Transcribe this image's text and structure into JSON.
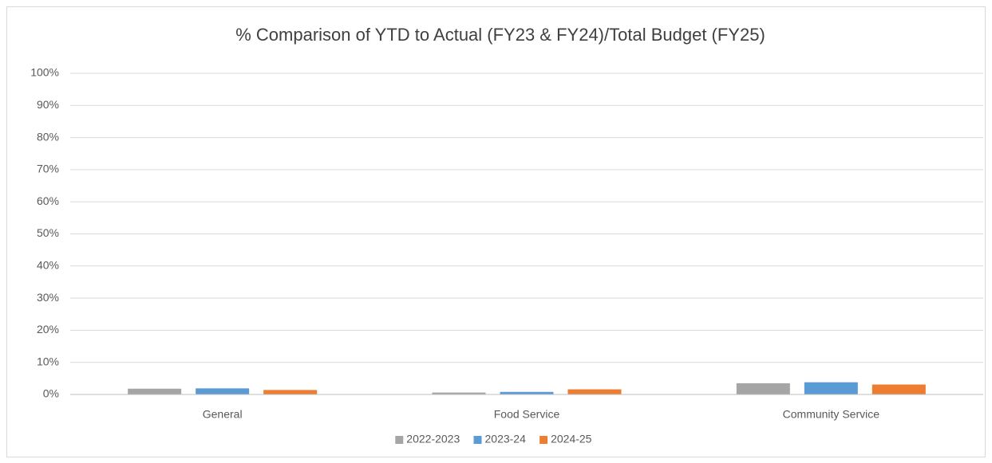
{
  "chart_data": {
    "type": "bar",
    "title": "% Comparison of YTD to Actual (FY23 & FY24)/Total Budget (FY25)",
    "categories": [
      "General",
      "Food Service",
      "Community Service"
    ],
    "series": [
      {
        "name": "2022-2023",
        "color": "#a5a5a5",
        "values": [
          1.8,
          0.6,
          3.5
        ]
      },
      {
        "name": "2023-24",
        "color": "#5b9bd5",
        "values": [
          1.9,
          0.8,
          3.8
        ]
      },
      {
        "name": "2024-25",
        "color": "#ed7d31",
        "values": [
          1.4,
          1.6,
          3.1
        ]
      }
    ],
    "ylim": [
      0,
      100
    ],
    "yticks": [
      {
        "value": 0,
        "label": "0%"
      },
      {
        "value": 10,
        "label": "10%"
      },
      {
        "value": 20,
        "label": "20%"
      },
      {
        "value": 30,
        "label": "30%"
      },
      {
        "value": 40,
        "label": "40%"
      },
      {
        "value": 50,
        "label": "50%"
      },
      {
        "value": 60,
        "label": "60%"
      },
      {
        "value": 70,
        "label": "70%"
      },
      {
        "value": 80,
        "label": "80%"
      },
      {
        "value": 90,
        "label": "90%"
      },
      {
        "value": 100,
        "label": "100%"
      }
    ],
    "grid": true,
    "legend": "bottom"
  }
}
